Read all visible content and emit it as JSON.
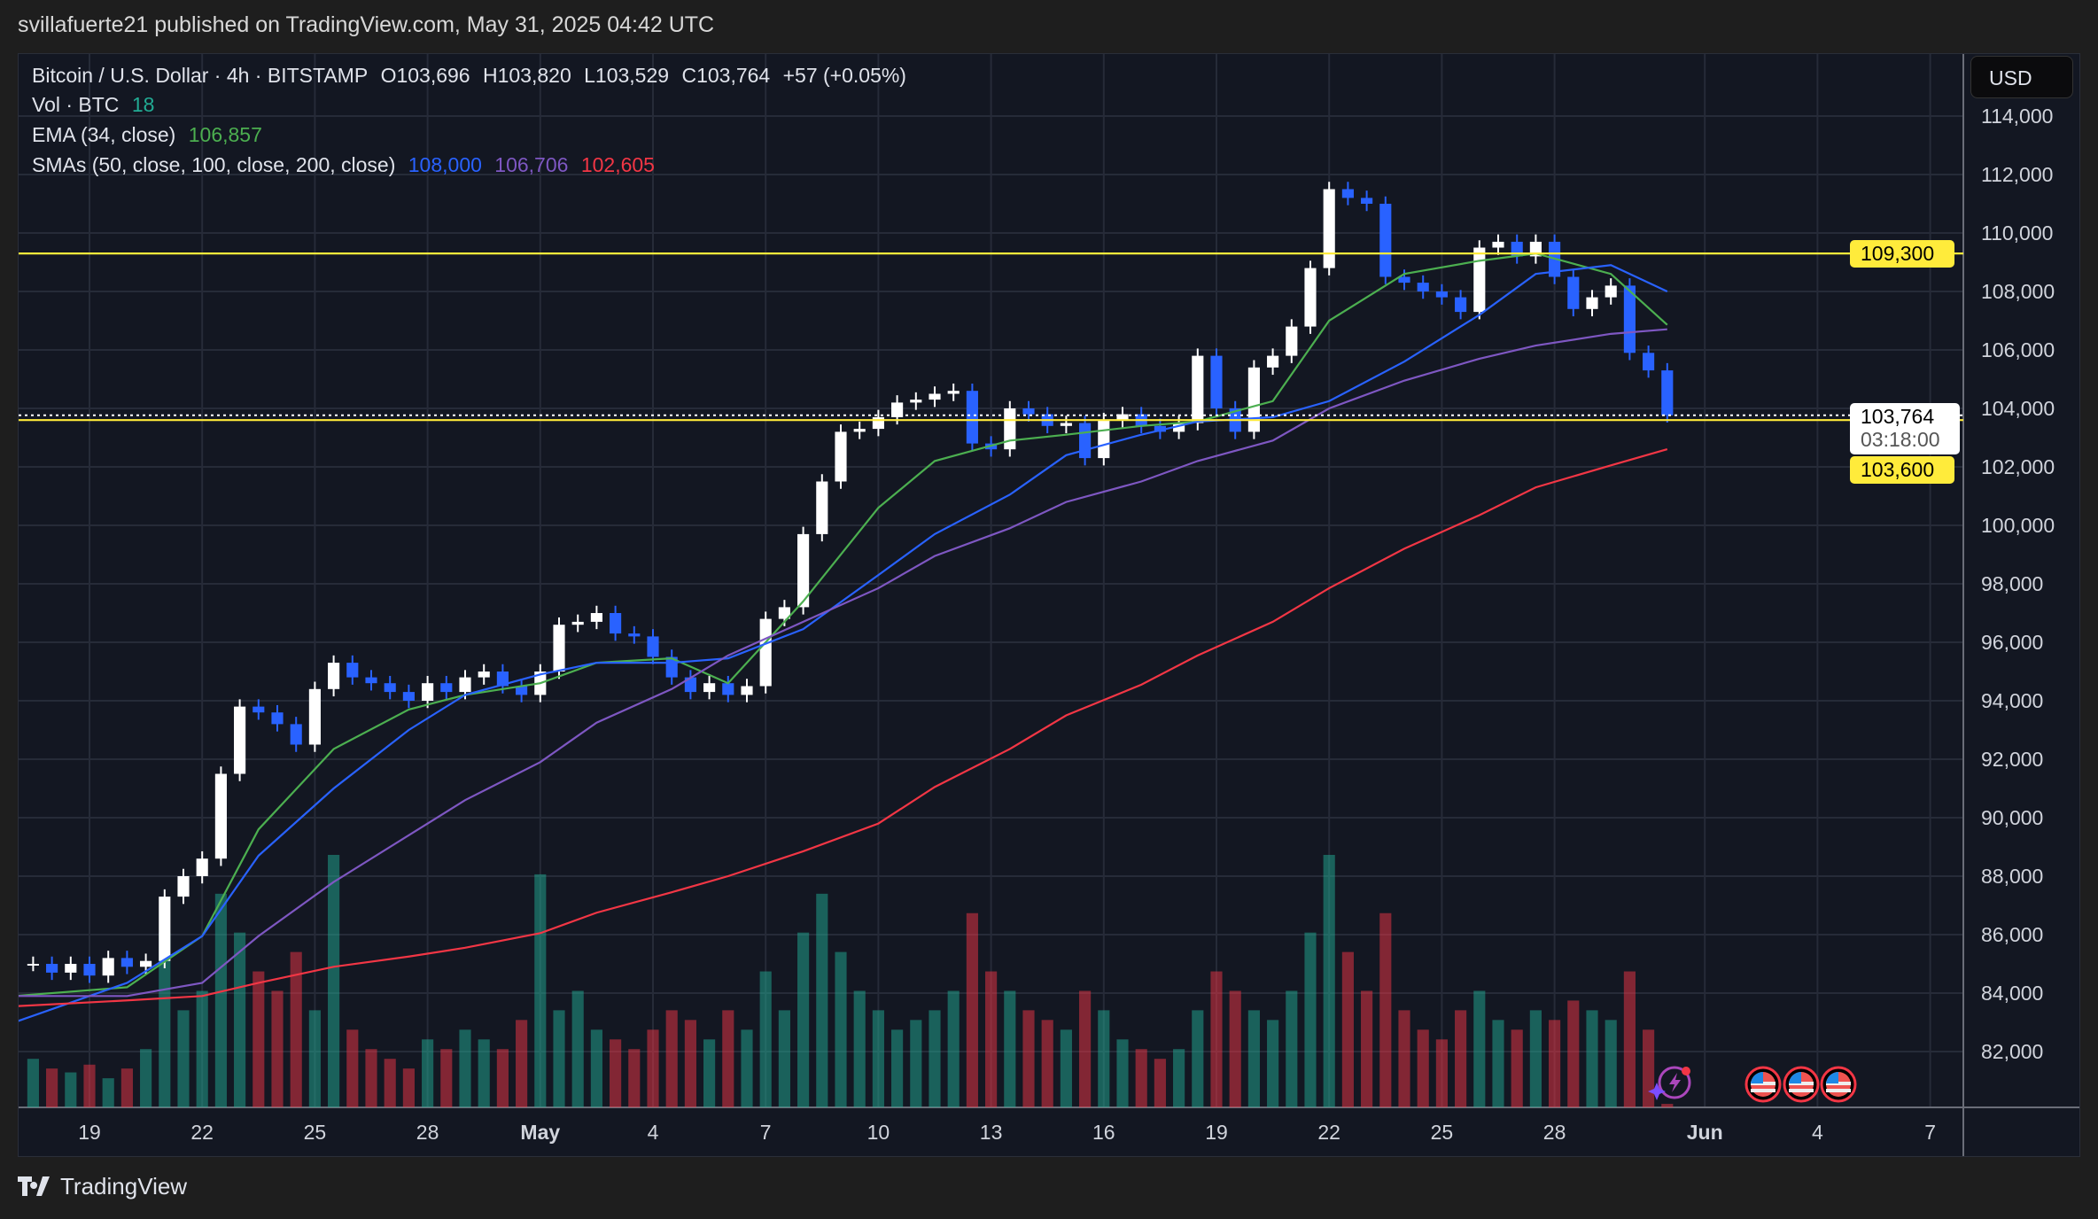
{
  "header": {
    "published": "svillafuerte21 published on TradingView.com, May 31, 2025 04:42 UTC"
  },
  "legend": {
    "symbol": "Bitcoin / U.S. Dollar · 4h · BITSTAMP",
    "open": "O103,696",
    "high": "H103,820",
    "low": "L103,529",
    "close": "C103,764",
    "change": "+57 (+0.05%)",
    "vol_label": "Vol · BTC",
    "vol_value": "18",
    "ema_label": "EMA (34, close)",
    "ema_value": "106,857",
    "sma_label": "SMAs (50, close, 100, close, 200, close)",
    "sma50_value": "108,000",
    "sma100_value": "106,706",
    "sma200_value": "102,605"
  },
  "price_axis": {
    "currency_button": "USD",
    "level_1": "109,300",
    "level_2": "103,600",
    "last_price": "103,764",
    "countdown": "03:18:00"
  },
  "footer": {
    "brand": "TradingView"
  },
  "colors": {
    "up_candle": "#ffffff",
    "down_candle": "#2962ff",
    "ema34": "#4caf50",
    "sma50": "#2962ff",
    "sma100": "#7e57c2",
    "sma200": "#f23645",
    "level_line": "#ffeb3b",
    "vol_up": "#22ab94",
    "vol_down": "#f23645"
  },
  "icons": [
    "lightning-event-icon",
    "us-flag-event-icon",
    "us-flag-event-icon",
    "us-flag-event-icon",
    "tradingview-logo-icon"
  ],
  "chart_data": {
    "type": "candlestick",
    "title": "Bitcoin / U.S. Dollar · 4h · BITSTAMP",
    "grid": true,
    "ylim": [
      81000,
      115000
    ],
    "y_ticks": [
      "114,000",
      "112,000",
      "110,000",
      "108,000",
      "106,000",
      "104,000",
      "102,000",
      "100,000",
      "98,000",
      "96,000",
      "94,000",
      "92,000",
      "90,000",
      "88,000",
      "86,000",
      "84,000",
      "82,000"
    ],
    "y_tick_values": [
      114000,
      112000,
      110000,
      108000,
      106000,
      104000,
      102000,
      100000,
      98000,
      96000,
      94000,
      92000,
      90000,
      88000,
      86000,
      84000,
      82000
    ],
    "x_ticks": [
      {
        "label": "19",
        "date": "2025-04-19"
      },
      {
        "label": "22",
        "date": "2025-04-22"
      },
      {
        "label": "25",
        "date": "2025-04-25"
      },
      {
        "label": "28",
        "date": "2025-04-28"
      },
      {
        "label": "May",
        "date": "2025-05-01"
      },
      {
        "label": "4",
        "date": "2025-05-04"
      },
      {
        "label": "7",
        "date": "2025-05-07"
      },
      {
        "label": "10",
        "date": "2025-05-10"
      },
      {
        "label": "13",
        "date": "2025-05-13"
      },
      {
        "label": "16",
        "date": "2025-05-16"
      },
      {
        "label": "19",
        "date": "2025-05-19"
      },
      {
        "label": "22",
        "date": "2025-05-22"
      },
      {
        "label": "25",
        "date": "2025-05-25"
      },
      {
        "label": "28",
        "date": "2025-05-28"
      },
      {
        "label": "Jun",
        "date": "2025-06-01"
      },
      {
        "label": "4",
        "date": "2025-06-04"
      },
      {
        "label": "7",
        "date": "2025-06-07"
      }
    ],
    "horizontal_levels": [
      109300,
      103600
    ],
    "last_price": 103764,
    "candles": {
      "first": "2025-04-17T12:00",
      "step_hours": 12,
      "close": [
        85000,
        84700,
        85000,
        84600,
        85200,
        84900,
        85100,
        87300,
        88000,
        88600,
        91500,
        93800,
        93600,
        93200,
        92500,
        94400,
        95300,
        94800,
        94600,
        94300,
        94000,
        94600,
        94300,
        94800,
        95000,
        94500,
        94200,
        95000,
        96600,
        96700,
        97000,
        96300,
        96200,
        95500,
        94800,
        94300,
        94600,
        94200,
        94500,
        96800,
        97200,
        99700,
        101500,
        103200,
        103300,
        103700,
        104200,
        104300,
        104500,
        104600,
        102800,
        102600,
        104000,
        103800,
        103400,
        103500,
        102300,
        103600,
        103800,
        103400,
        103200,
        103500,
        105800,
        104000,
        103200,
        105400,
        105800,
        106800,
        108800,
        111500,
        111200,
        111000,
        108500,
        108300,
        108000,
        107800,
        107300,
        109500,
        109700,
        109200,
        109700,
        108500,
        107400,
        107800,
        108200,
        105900,
        105300,
        103764
      ],
      "volume": [
        250,
        200,
        180,
        220,
        150,
        200,
        300,
        900,
        500,
        600,
        1100,
        900,
        700,
        600,
        800,
        500,
        1300,
        400,
        300,
        250,
        200,
        350,
        300,
        400,
        350,
        300,
        450,
        1200,
        500,
        600,
        400,
        350,
        300,
        400,
        500,
        450,
        350,
        500,
        400,
        700,
        500,
        900,
        1100,
        800,
        600,
        500,
        400,
        450,
        500,
        600,
        1000,
        700,
        600,
        500,
        450,
        400,
        600,
        500,
        350,
        300,
        250,
        300,
        500,
        700,
        600,
        500,
        450,
        600,
        900,
        1300,
        800,
        600,
        1000,
        500,
        400,
        350,
        500,
        600,
        450,
        400,
        500,
        450,
        550,
        500,
        450,
        700,
        400,
        18
      ]
    },
    "moving_averages": {
      "dates": [
        "2025-04-17",
        "2025-04-20",
        "2025-04-22",
        "2025-04-23T12:00",
        "2025-04-25T12:00",
        "2025-04-27T12:00",
        "2025-04-29",
        "2025-05-01",
        "2025-05-02T12:00",
        "2025-05-04T12:00",
        "2025-05-06",
        "2025-05-08",
        "2025-05-10",
        "2025-05-11T12:00",
        "2025-05-13T12:00",
        "2025-05-15",
        "2025-05-17",
        "2025-05-18T12:00",
        "2025-05-20T12:00",
        "2025-05-22",
        "2025-05-24",
        "2025-05-26",
        "2025-05-27T12:00",
        "2025-05-29T12:00",
        "2025-05-31"
      ],
      "series": [
        {
          "name": "EMA (34, close)",
          "color": "#4caf50",
          "values": [
            83900,
            84200,
            85950,
            89600,
            92350,
            93700,
            94200,
            94600,
            95300,
            95450,
            94600,
            97400,
            100600,
            102200,
            102900,
            103100,
            103400,
            103550,
            104250,
            107000,
            108600,
            109050,
            109300,
            108600,
            106857
          ]
        },
        {
          "name": "SMA 50",
          "color": "#2962ff",
          "values": [
            83000,
            84350,
            85950,
            88700,
            91000,
            93000,
            94200,
            94900,
            95300,
            95300,
            95450,
            96450,
            98300,
            99700,
            101050,
            102400,
            103100,
            103550,
            103700,
            104250,
            105600,
            107200,
            108600,
            108900,
            108000
          ]
        },
        {
          "name": "SMA 100",
          "color": "#7e57c2",
          "values": [
            83900,
            83900,
            84350,
            85950,
            87800,
            89400,
            90600,
            91900,
            93250,
            94400,
            95550,
            96700,
            97850,
            98950,
            99900,
            100800,
            101500,
            102200,
            102900,
            104000,
            104950,
            105700,
            106150,
            106550,
            106706
          ]
        },
        {
          "name": "SMA 200",
          "color": "#f23645",
          "values": [
            83550,
            83750,
            83900,
            84350,
            84900,
            85250,
            85550,
            86050,
            86750,
            87450,
            88000,
            88850,
            89800,
            91050,
            92350,
            93500,
            94550,
            95550,
            96700,
            97850,
            99200,
            100350,
            101300,
            102050,
            102605
          ]
        }
      ]
    }
  }
}
